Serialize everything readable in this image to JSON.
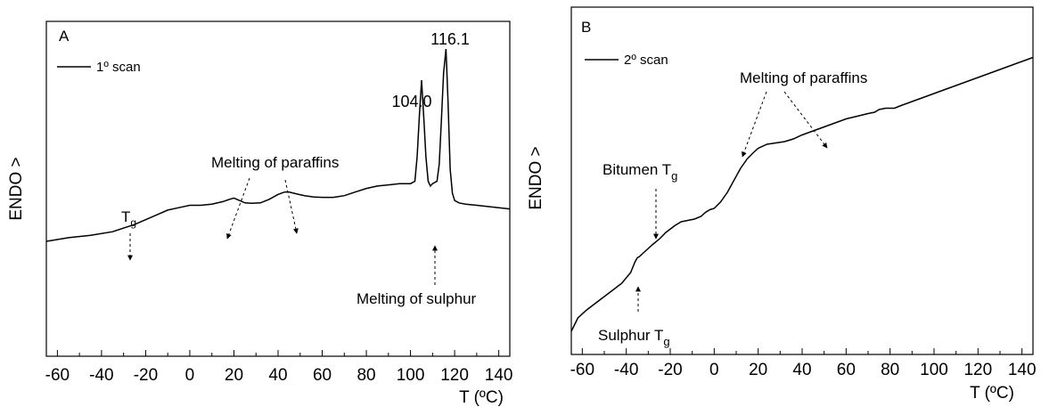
{
  "chart_data": [
    {
      "type": "line",
      "panel": "A",
      "xlabel": "T (ºC)",
      "ylabel": "ENDO >",
      "xlim": [
        -65,
        145
      ],
      "xticks": [
        -60,
        -40,
        -20,
        0,
        20,
        40,
        60,
        80,
        100,
        120,
        140
      ],
      "xtick_labels": [
        "-60",
        "-40",
        "-20",
        "0",
        "20",
        "40",
        "60",
        "80",
        "100",
        "120",
        "140"
      ],
      "ylim": [
        0,
        1
      ],
      "y_ticks_shown": false,
      "legend": "top-left",
      "series": [
        {
          "name": "1º scan",
          "x": [
            -65,
            -55,
            -45,
            -35,
            -30,
            -25,
            -20,
            -15,
            -10,
            -5,
            0,
            5,
            10,
            15,
            18,
            20,
            22,
            25,
            28,
            32,
            36,
            40,
            43,
            45,
            48,
            52,
            56,
            60,
            65,
            70,
            75,
            80,
            85,
            90,
            95,
            100,
            102,
            103,
            104,
            105,
            106,
            107,
            108,
            109,
            110,
            112,
            113,
            114,
            115,
            116.1,
            117,
            118,
            119,
            120,
            122,
            125,
            130,
            135,
            140,
            145
          ],
          "y": [
            0.2,
            0.215,
            0.225,
            0.24,
            0.255,
            0.27,
            0.29,
            0.31,
            0.33,
            0.34,
            0.35,
            0.35,
            0.355,
            0.365,
            0.375,
            0.38,
            0.372,
            0.36,
            0.358,
            0.36,
            0.375,
            0.395,
            0.405,
            0.405,
            0.398,
            0.39,
            0.385,
            0.383,
            0.383,
            0.39,
            0.405,
            0.42,
            0.43,
            0.435,
            0.44,
            0.44,
            0.45,
            0.55,
            0.72,
            0.87,
            0.72,
            0.55,
            0.45,
            0.43,
            0.44,
            0.45,
            0.52,
            0.7,
            0.9,
            1.0,
            0.78,
            0.5,
            0.4,
            0.37,
            0.36,
            0.355,
            0.35,
            0.345,
            0.34,
            0.335
          ]
        }
      ],
      "annotations": [
        {
          "text": "104.0"
        },
        {
          "text": "116.1"
        },
        {
          "text_main": "T",
          "text_sub": "g"
        },
        {
          "text": "Melting of paraffins"
        },
        {
          "text": "Melting of sulphur"
        }
      ]
    },
    {
      "type": "line",
      "panel": "B",
      "xlabel": "T (ºC)",
      "ylabel": "ENDO >",
      "xlim": [
        -65,
        145
      ],
      "xticks": [
        -60,
        -40,
        -20,
        0,
        20,
        40,
        60,
        80,
        100,
        120,
        140
      ],
      "xtick_labels": [
        "-60",
        "-40",
        "-20",
        "0",
        "20",
        "40",
        "60",
        "80",
        "100",
        "120",
        "140"
      ],
      "ylim": [
        0,
        1
      ],
      "y_ticks_shown": false,
      "legend": "top-left",
      "series": [
        {
          "name": "2º scan",
          "x": [
            -65,
            -62,
            -58,
            -54,
            -50,
            -46,
            -42,
            -38,
            -36,
            -35,
            -34,
            -32,
            -30,
            -28,
            -25,
            -22,
            -18,
            -15,
            -12,
            -9,
            -6,
            -4,
            -2,
            0,
            3,
            6,
            9,
            12,
            15,
            18,
            20,
            24,
            28,
            32,
            36,
            40,
            45,
            50,
            55,
            60,
            65,
            70,
            73,
            75,
            78,
            80,
            82,
            85,
            90,
            95,
            100,
            105,
            110,
            115,
            120,
            125,
            130,
            135,
            140,
            145
          ],
          "y": [
            0.0,
            0.05,
            0.08,
            0.105,
            0.13,
            0.155,
            0.18,
            0.22,
            0.26,
            0.275,
            0.28,
            0.295,
            0.31,
            0.325,
            0.345,
            0.37,
            0.395,
            0.41,
            0.415,
            0.42,
            0.43,
            0.445,
            0.455,
            0.46,
            0.485,
            0.52,
            0.565,
            0.61,
            0.645,
            0.67,
            0.685,
            0.7,
            0.705,
            0.71,
            0.72,
            0.735,
            0.75,
            0.765,
            0.78,
            0.795,
            0.805,
            0.815,
            0.82,
            0.83,
            0.835,
            0.835,
            0.835,
            0.845,
            0.86,
            0.875,
            0.89,
            0.905,
            0.92,
            0.935,
            0.95,
            0.965,
            0.98,
            0.995,
            1.01,
            1.025
          ]
        }
      ],
      "annotations": [
        {
          "text": "Melting of paraffins"
        },
        {
          "text_main": "Bitumen T",
          "text_sub": "g"
        },
        {
          "text_main": "Sulphur T",
          "text_sub": "g"
        }
      ]
    }
  ]
}
